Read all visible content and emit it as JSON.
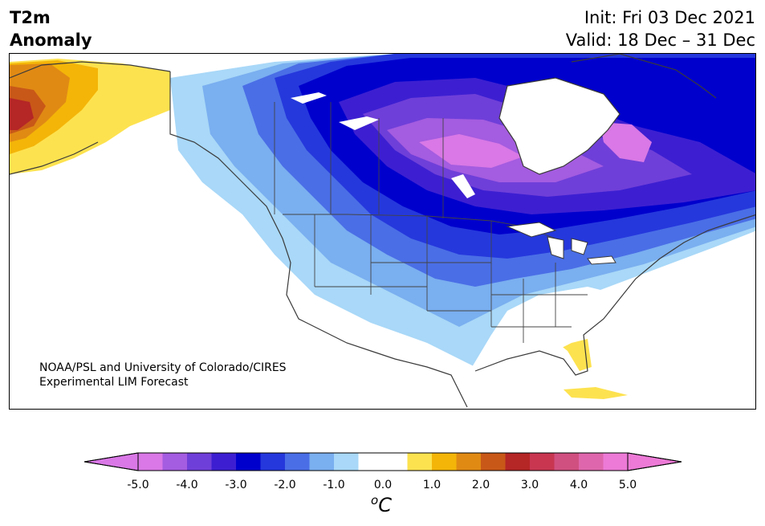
{
  "header": {
    "title_line1": "T2m",
    "title_line2": "Anomaly",
    "init_line": "Init: Fri 03 Dec 2021",
    "valid_line": "Valid: 18 Dec – 31 Dec"
  },
  "credit": {
    "line1": "NOAA/PSL and University of Colorado/CIRES",
    "line2": "Experimental LIM Forecast"
  },
  "colorbar": {
    "unit_base": "C",
    "unit_prefix": "o",
    "tick_labels": [
      "-5.0",
      "-4.0",
      "-3.0",
      "-2.0",
      "-1.0",
      "0.0",
      "1.0",
      "2.0",
      "3.0",
      "4.0",
      "5.0"
    ],
    "levels": [
      -5.0,
      -4.5,
      -4.0,
      -3.5,
      -3.0,
      -2.5,
      -2.0,
      -1.5,
      -1.0,
      -0.5,
      0.5,
      1.0,
      1.5,
      2.0,
      2.5,
      3.0,
      3.5,
      4.0,
      4.5,
      5.0
    ],
    "colors": [
      "#d978e6",
      "#a45ce0",
      "#6f3fd9",
      "#3d1fd1",
      "#0000cd",
      "#2538dc",
      "#4a6ee6",
      "#7aaff0",
      "#a9d8f8",
      "#ffffff",
      "#fde24f",
      "#f4b508",
      "#e08a14",
      "#c85818",
      "#b52626",
      "#c83650",
      "#d05080",
      "#de66ac",
      "#ec7ad6"
    ],
    "extend_min_color": "#d978e6",
    "extend_max_color": "#ec7ad6"
  },
  "palette": {
    "land_outline": "#3a3a3a",
    "zero_band": "#ffffff"
  }
}
